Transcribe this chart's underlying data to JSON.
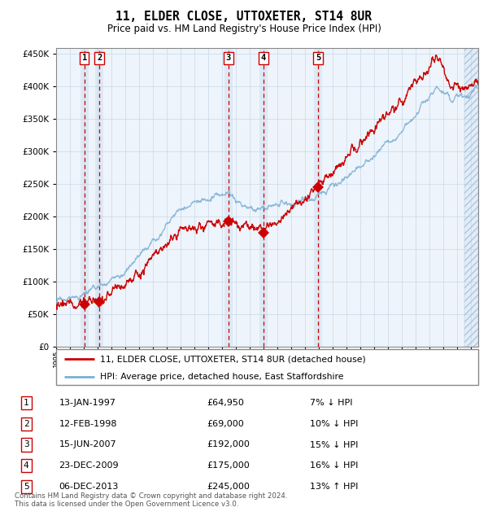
{
  "title": "11, ELDER CLOSE, UTTOXETER, ST14 8UR",
  "subtitle": "Price paid vs. HM Land Registry's House Price Index (HPI)",
  "legend_line1": "11, ELDER CLOSE, UTTOXETER, ST14 8UR (detached house)",
  "legend_line2": "HPI: Average price, detached house, East Staffordshire",
  "footer1": "Contains HM Land Registry data © Crown copyright and database right 2024.",
  "footer2": "This data is licensed under the Open Government Licence v3.0.",
  "sales": [
    {
      "num": 1,
      "date_str": "13-JAN-1997",
      "date_x": 1997.04,
      "price": 64950,
      "hpi_diff": "7% ↓ HPI"
    },
    {
      "num": 2,
      "date_str": "12-FEB-1998",
      "date_x": 1998.12,
      "price": 69000,
      "hpi_diff": "10% ↓ HPI"
    },
    {
      "num": 3,
      "date_str": "15-JUN-2007",
      "date_x": 2007.45,
      "price": 192000,
      "hpi_diff": "15% ↓ HPI"
    },
    {
      "num": 4,
      "date_str": "23-DEC-2009",
      "date_x": 2009.98,
      "price": 175000,
      "hpi_diff": "16% ↓ HPI"
    },
    {
      "num": 5,
      "date_str": "06-DEC-2013",
      "date_x": 2013.92,
      "price": 245000,
      "hpi_diff": "13% ↑ HPI"
    }
  ],
  "hpi_color": "#7bafd4",
  "price_color": "#cc0000",
  "vline_color": "#cc0000",
  "shade_color": "#dce8f5",
  "ylim": [
    0,
    460000
  ],
  "xlim": [
    1995.0,
    2025.5
  ],
  "yticks": [
    0,
    50000,
    100000,
    150000,
    200000,
    250000,
    300000,
    350000,
    400000,
    450000
  ],
  "xticks": [
    1995,
    1996,
    1997,
    1998,
    1999,
    2000,
    2001,
    2002,
    2003,
    2004,
    2005,
    2006,
    2007,
    2008,
    2009,
    2010,
    2011,
    2012,
    2013,
    2014,
    2015,
    2016,
    2017,
    2018,
    2019,
    2020,
    2021,
    2022,
    2023,
    2024,
    2025
  ]
}
